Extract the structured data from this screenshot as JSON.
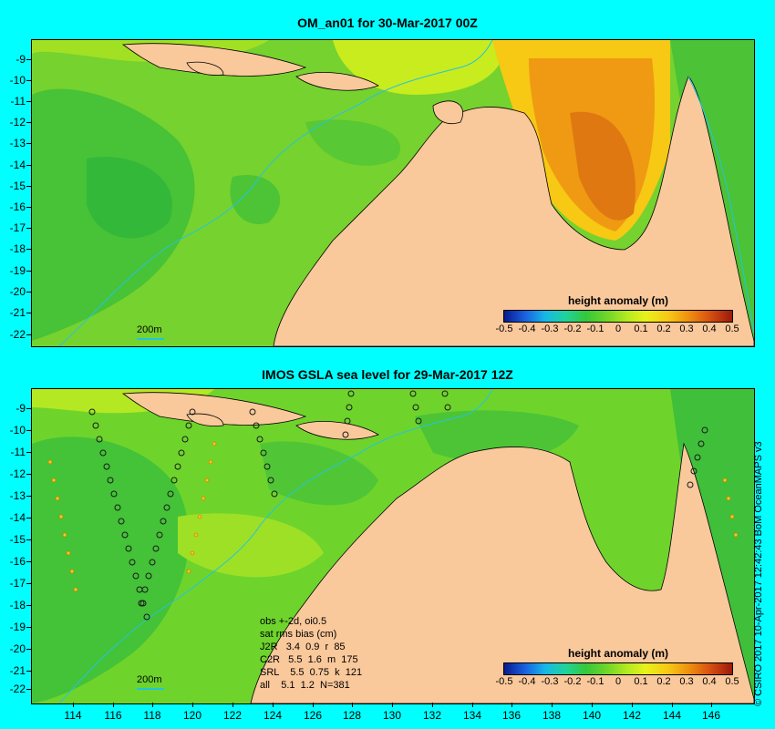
{
  "panels": [
    {
      "title": "OM_an01 for 30-Mar-2017 00Z",
      "legend": {
        "title": "height anomaly (m)",
        "ticks": [
          "-0.5",
          "-0.4",
          "-0.3",
          "-0.2",
          "-0.1",
          "0",
          "0.1",
          "0.2",
          "0.3",
          "0.4",
          "0.5"
        ]
      },
      "scale_label": "200m",
      "y_labels": [
        "-9",
        "-10",
        "-11",
        "-12",
        "-13",
        "-14",
        "-15",
        "-16",
        "-17",
        "-18",
        "-19",
        "-20",
        "-21",
        "-22"
      ]
    },
    {
      "title": "IMOS GSLA sea level  for 29-Mar-2017 12Z",
      "legend": {
        "title": "height anomaly (m)",
        "ticks": [
          "-0.5",
          "-0.4",
          "-0.3",
          "-0.2",
          "-0.1",
          "0",
          "0.1",
          "0.2",
          "0.3",
          "0.4",
          "0.5"
        ]
      },
      "scale_label": "200m",
      "y_labels": [
        "-9",
        "-10",
        "-11",
        "-12",
        "-13",
        "-14",
        "-15",
        "-16",
        "-17",
        "-18",
        "-19",
        "-20",
        "-21",
        "-22"
      ],
      "stats": {
        "line1": "obs +-2d, oi0.5",
        "line2": "sat rms bias (cm)",
        "rows": [
          "J2R   3.4  0.9  r  85",
          "C2R   5.5  1.6  m  175",
          "SRL    5.5  0.75  k  121",
          "all    5.1  1.2  N=381"
        ]
      }
    }
  ],
  "x_labels": [
    "114",
    "116",
    "118",
    "120",
    "122",
    "124",
    "126",
    "128",
    "130",
    "132",
    "134",
    "136",
    "138",
    "140",
    "142",
    "144",
    "146"
  ],
  "credit": "© CSIRO 2017  10-Apr-2017 12:42:43 BoM OceanMAPS v3",
  "colors": {
    "background": "#00ffff",
    "land": "#f9c89b",
    "ocean_positive": "#f0a020",
    "ocean_neutral": "#7fd632"
  }
}
